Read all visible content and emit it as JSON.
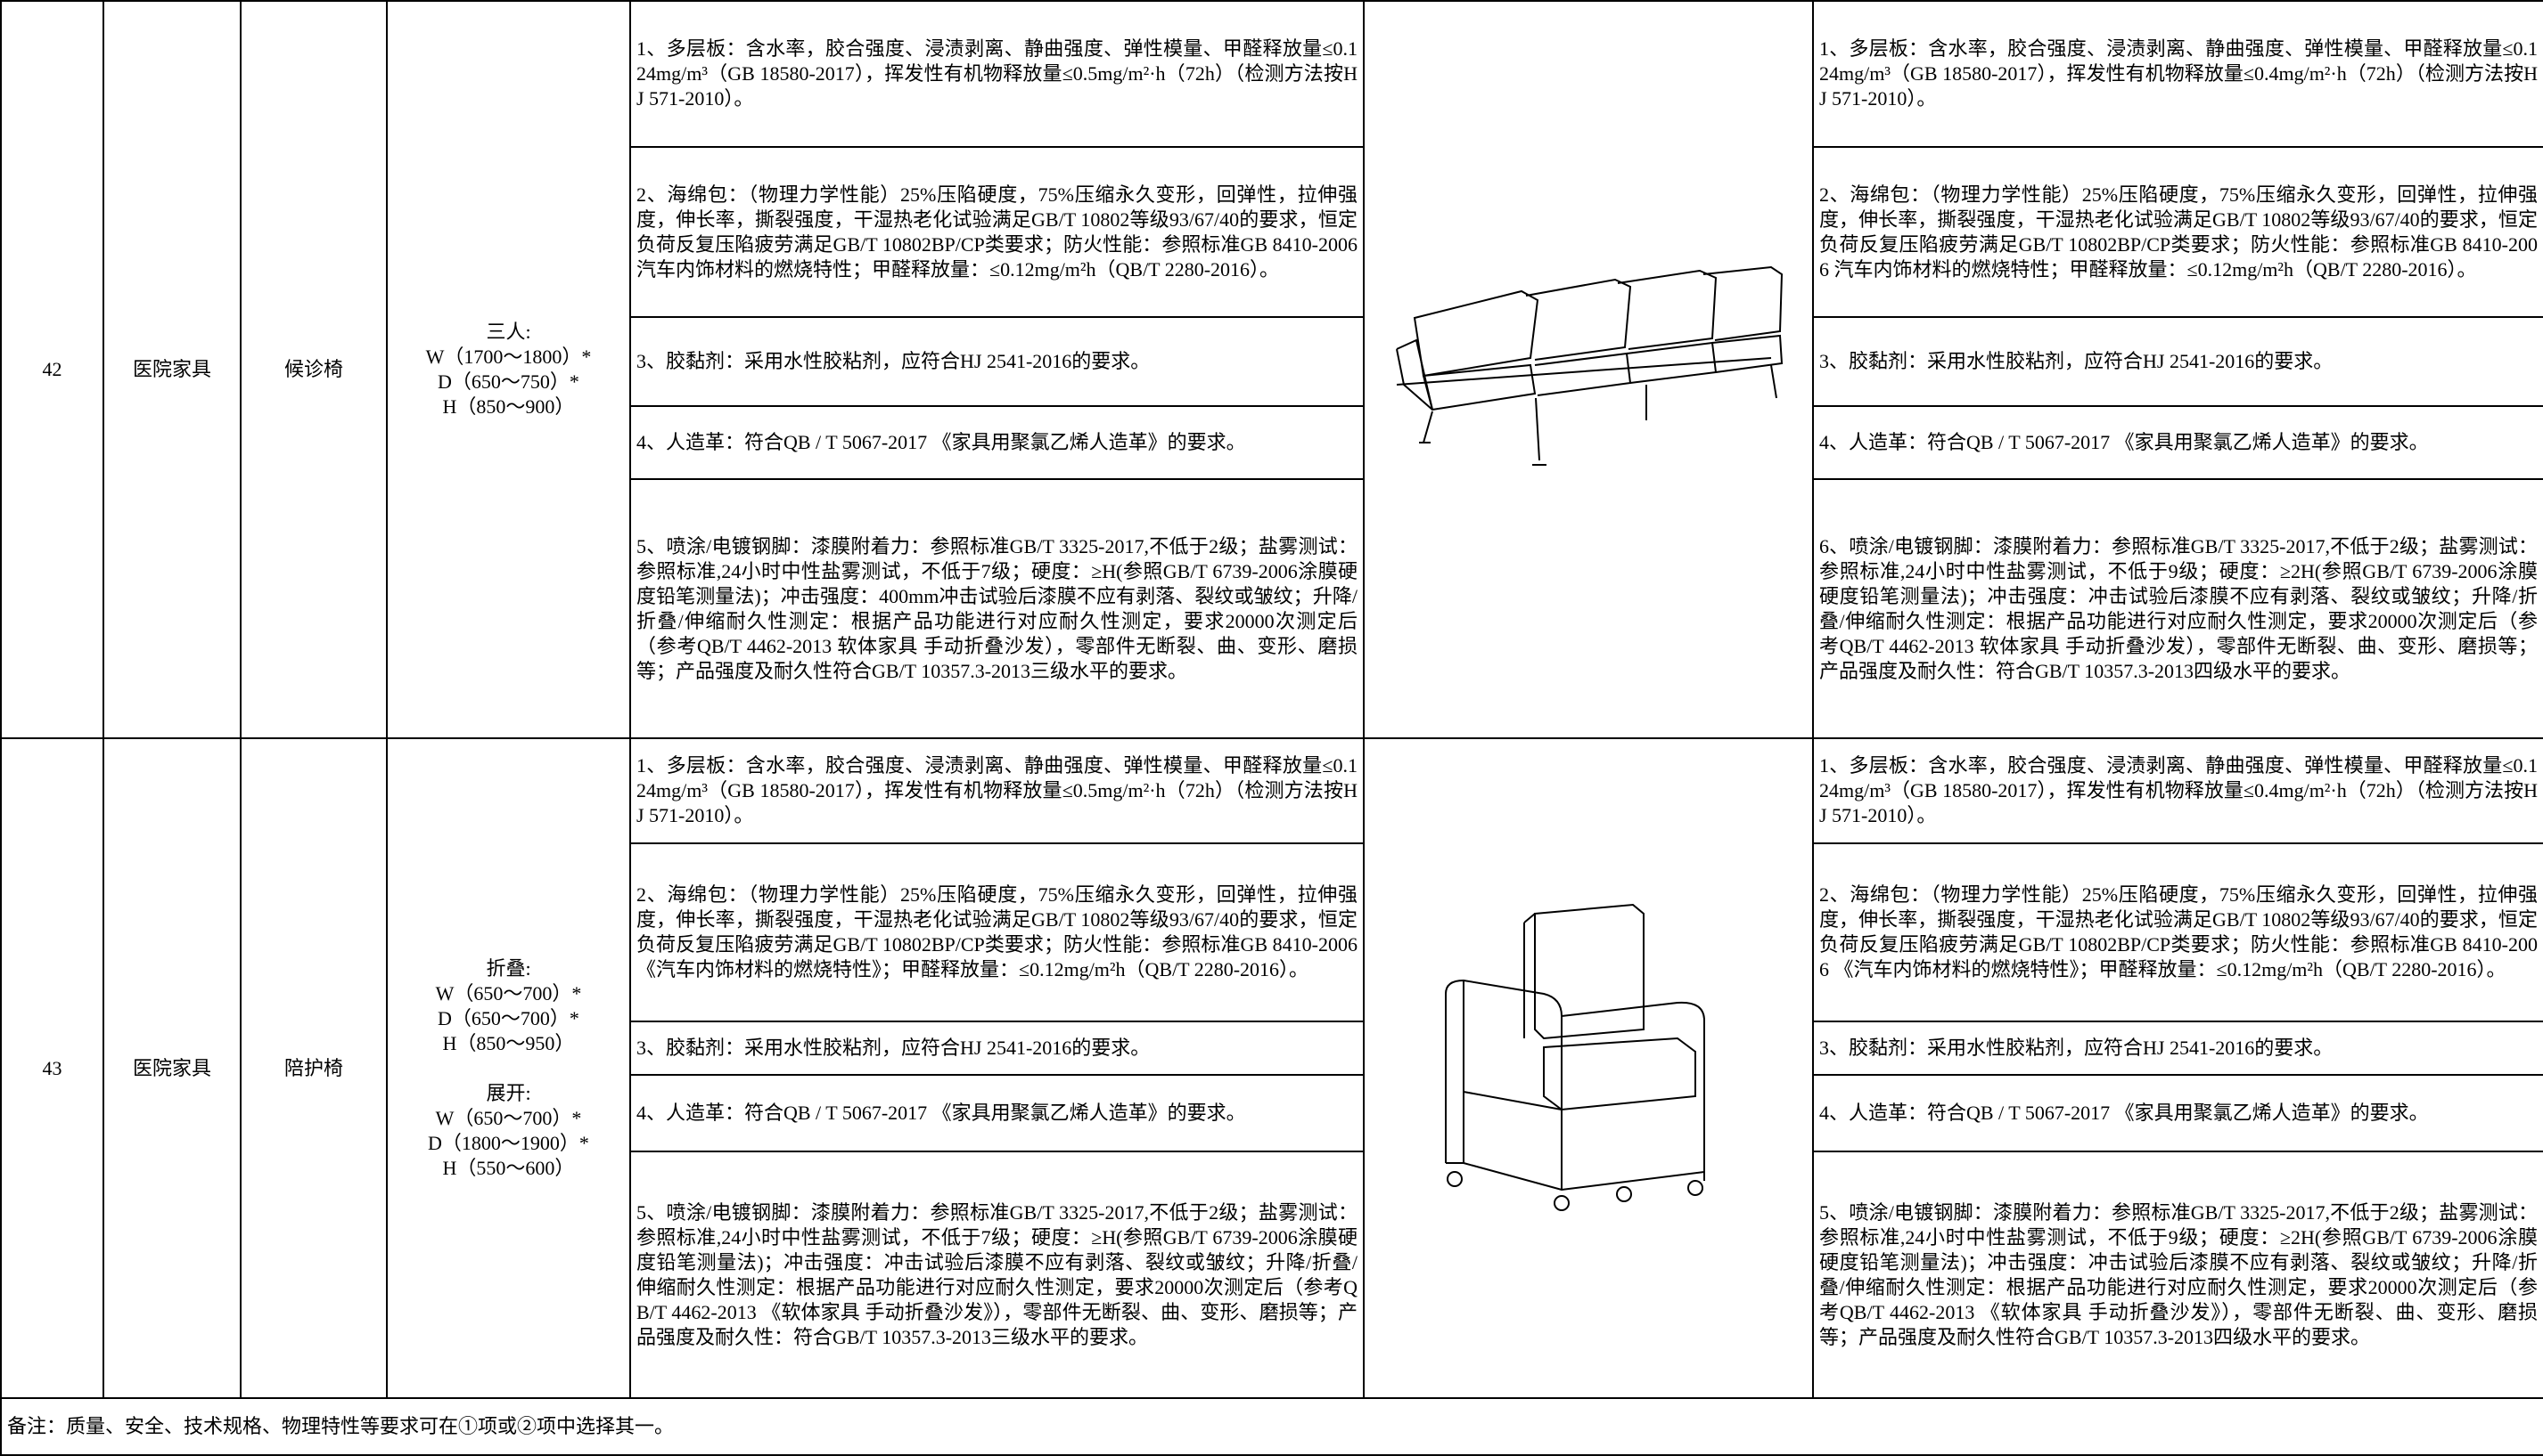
{
  "rows": [
    {
      "no": "42",
      "category": "医院家具",
      "name": "候诊椅",
      "spec": [
        "三人:",
        "W（1700～1800）*",
        "D（650～750）*",
        "H（850～900）"
      ],
      "requirements_a": [
        "1、多层板：含水率，胶合强度、浸渍剥离、静曲强度、弹性模量、甲醛释放量≤0.124mg/m³（GB 18580-2017），挥发性有机物释放量≤0.5mg/m²·h（72h）（检测方法按HJ 571-2010）。",
        "2、海绵包：（物理力学性能）25%压陷硬度，75%压缩永久变形，回弹性，拉伸强度，伸长率，撕裂强度，干湿热老化试验满足GB/T 10802等级93/67/40的要求，恒定负荷反复压陷疲劳满足GB/T 10802BP/CP类要求；防火性能：参照标准GB 8410-2006 汽车内饰材料的燃烧特性；甲醛释放量：≤0.12mg/m²h（QB/T 2280-2016）。",
        "3、胶黏剂：采用水性胶粘剂，应符合HJ 2541-2016的要求。",
        "4、人造革：符合QB / T 5067-2017 《家具用聚氯乙烯人造革》的要求。",
        "5、喷涂/电镀钢脚：漆膜附着力：参照标准GB/T 3325-2017,不低于2级；盐雾测试：参照标准,24小时中性盐雾测试，不低于7级；硬度：≥H(参照GB/T 6739-2006涂膜硬度铅笔测量法)；冲击强度：400mm冲击试验后漆膜不应有剥落、裂纹或皱纹；升降/折叠/伸缩耐久性测定：根据产品功能进行对应耐久性测定，要求20000次测定后（参考QB/T 4462-2013 软体家具 手动折叠沙发），零部件无断裂、曲、变形、磨损等；产品强度及耐久性符合GB/T 10357.3-2013三级水平的要求。"
      ],
      "requirements_b": [
        "1、多层板：含水率，胶合强度、浸渍剥离、静曲强度、弹性模量、甲醛释放量≤0.124mg/m³（GB 18580-2017），挥发性有机物释放量≤0.4mg/m²·h（72h）（检测方法按HJ 571-2010）。",
        "2、海绵包：（物理力学性能）25%压陷硬度，75%压缩永久变形，回弹性，拉伸强度，伸长率，撕裂强度，干湿热老化试验满足GB/T 10802等级93/67/40的要求，恒定负荷反复压陷疲劳满足GB/T 10802BP/CP类要求；防火性能：参照标准GB 8410-2006 汽车内饰材料的燃烧特性；甲醛释放量：≤0.12mg/m²h（QB/T 2280-2016）。",
        "3、胶黏剂：采用水性胶粘剂，应符合HJ 2541-2016的要求。",
        "4、人造革：符合QB / T 5067-2017 《家具用聚氯乙烯人造革》的要求。",
        "6、喷涂/电镀钢脚：漆膜附着力：参照标准GB/T 3325-2017,不低于2级；盐雾测试：参照标准,24小时中性盐雾测试，不低于9级；硬度：≥2H(参照GB/T 6739-2006涂膜硬度铅笔测量法)；冲击强度：冲击试验后漆膜不应有剥落、裂纹或皱纹；升降/折叠/伸缩耐久性测定：根据产品功能进行对应耐久性测定，要求20000次测定后（参考QB/T 4462-2013 软体家具 手动折叠沙发），零部件无断裂、曲、变形、磨损等；产品强度及耐久性：符合GB/T 10357.3-2013四级水平的要求。"
      ]
    },
    {
      "no": "43",
      "category": "医院家具",
      "name": "陪护椅",
      "spec": [
        "折叠:",
        "W（650～700）*",
        "D（650～700）*",
        "H（850～950）",
        "展开:",
        "W（650～700）*",
        "D（1800～1900）*",
        "H（550～600）"
      ],
      "requirements_a": [
        "1、多层板：含水率，胶合强度、浸渍剥离、静曲强度、弹性模量、甲醛释放量≤0.124mg/m³（GB 18580-2017），挥发性有机物释放量≤0.5mg/m²·h（72h）（检测方法按HJ 571-2010）。",
        "2、海绵包：（物理力学性能）25%压陷硬度，75%压缩永久变形，回弹性，拉伸强度，伸长率，撕裂强度，干湿热老化试验满足GB/T 10802等级93/67/40的要求，恒定负荷反复压陷疲劳满足GB/T 10802BP/CP类要求；防火性能：参照标准GB 8410-2006 《汽车内饰材料的燃烧特性》；甲醛释放量：≤0.12mg/m²h（QB/T 2280-2016）。",
        "3、胶黏剂：采用水性胶粘剂，应符合HJ 2541-2016的要求。",
        "4、人造革：符合QB / T 5067-2017 《家具用聚氯乙烯人造革》的要求。",
        "5、喷涂/电镀钢脚：漆膜附着力：参照标准GB/T 3325-2017,不低于2级；盐雾测试：参照标准,24小时中性盐雾测试，不低于7级；硬度：≥H(参照GB/T 6739-2006涂膜硬度铅笔测量法)；冲击强度：冲击试验后漆膜不应有剥落、裂纹或皱纹；升降/折叠/伸缩耐久性测定：根据产品功能进行对应耐久性测定，要求20000次测定后（参考QB/T 4462-2013 《软体家具 手动折叠沙发》），零部件无断裂、曲、变形、磨损等；产品强度及耐久性：符合GB/T 10357.3-2013三级水平的要求。"
      ],
      "requirements_b": [
        "1、多层板：含水率，胶合强度、浸渍剥离、静曲强度、弹性模量、甲醛释放量≤0.124mg/m³（GB 18580-2017），挥发性有机物释放量≤0.4mg/m²·h（72h）（检测方法按HJ 571-2010）。",
        "2、海绵包：（物理力学性能）25%压陷硬度，75%压缩永久变形，回弹性，拉伸强度，伸长率，撕裂强度，干湿热老化试验满足GB/T 10802等级93/67/40的要求，恒定负荷反复压陷疲劳满足GB/T 10802BP/CP类要求；防火性能：参照标准GB 8410-2006 《汽车内饰材料的燃烧特性》；甲醛释放量：≤0.12mg/m²h（QB/T 2280-2016）。",
        "3、胶黏剂：采用水性胶粘剂，应符合HJ 2541-2016的要求。",
        "4、人造革：符合QB / T 5067-2017 《家具用聚氯乙烯人造革》的要求。",
        "5、喷涂/电镀钢脚：漆膜附着力：参照标准GB/T 3325-2017,不低于2级；盐雾测试：参照标准,24小时中性盐雾测试，不低于9级；硬度：≥2H(参照GB/T 6739-2006涂膜硬度铅笔测量法)；冲击强度：冲击试验后漆膜不应有剥落、裂纹或皱纹；升降/折叠/伸缩耐久性测定：根据产品功能进行对应耐久性测定，要求20000次测定后（参考QB/T 4462-2013 《软体家具 手动折叠沙发》），零部件无断裂、曲、变形、磨损等；产品强度及耐久性符合GB/T 10357.3-2013四级水平的要求。"
      ]
    }
  ],
  "note": "备注：质量、安全、技术规格、物理特性等要求可在①项或②项中选择其一。"
}
